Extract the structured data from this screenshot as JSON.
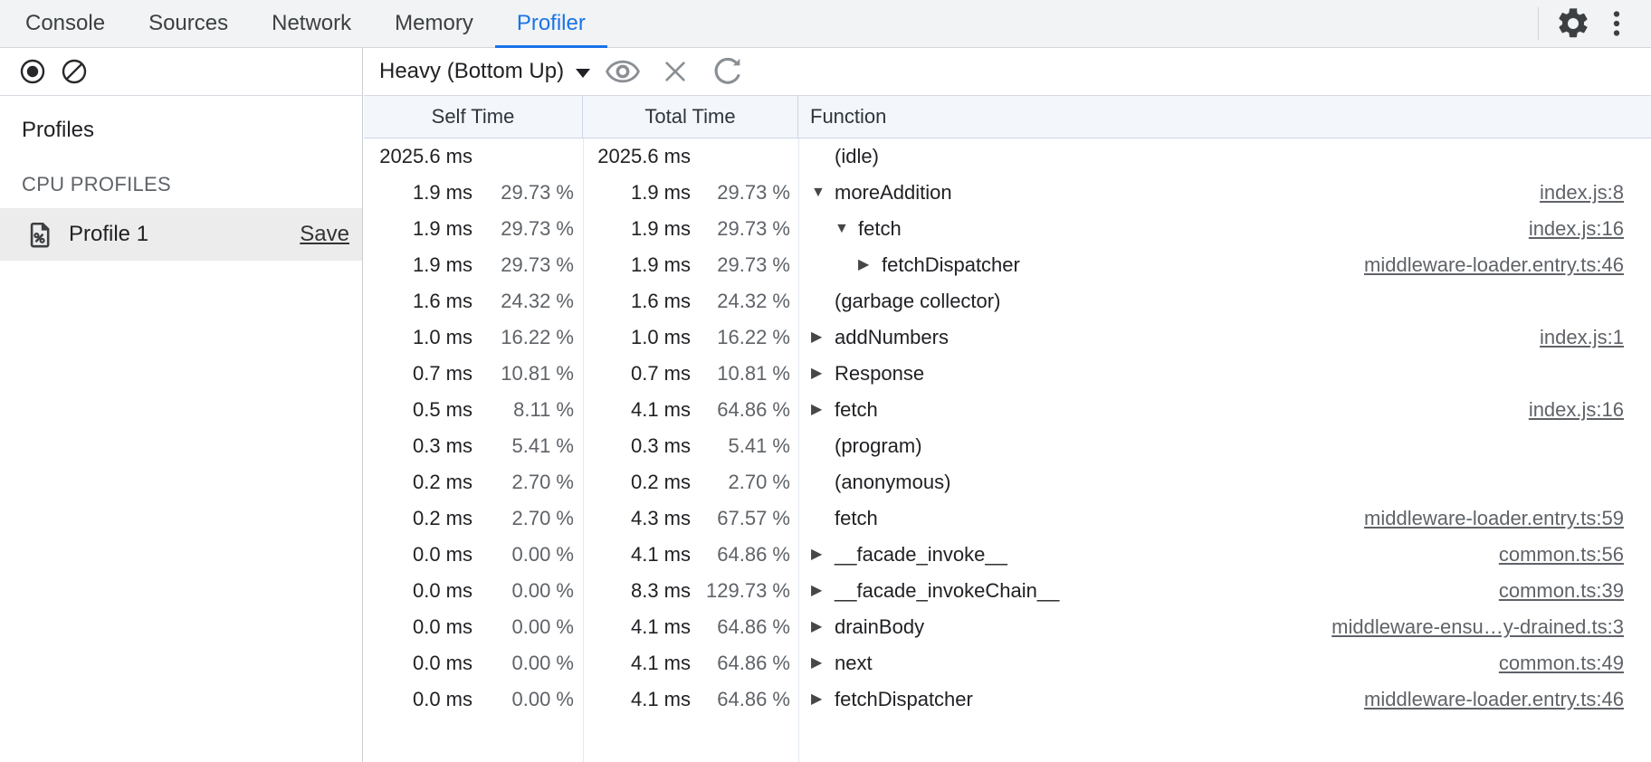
{
  "window": {
    "tabs": [
      "Console",
      "Sources",
      "Network",
      "Memory",
      "Profiler"
    ],
    "active_tab": "Profiler"
  },
  "toolbar": {
    "view_selector_label": "Heavy (Bottom Up)"
  },
  "sidebar": {
    "heading": "Profiles",
    "section": "CPU PROFILES",
    "profile_name": "Profile 1",
    "save_label": "Save"
  },
  "table": {
    "columns": [
      "Self Time",
      "Total Time",
      "Function"
    ],
    "rows": [
      {
        "self_ms": "2025.6 ms",
        "self_pct": "",
        "total_ms": "2025.6 ms",
        "total_pct": "",
        "fn": "(idle)",
        "depth": 0,
        "arrow": "",
        "link": ""
      },
      {
        "self_ms": "1.9 ms",
        "self_pct": "29.73 %",
        "total_ms": "1.9 ms",
        "total_pct": "29.73 %",
        "fn": "moreAddition",
        "depth": 0,
        "arrow": "down",
        "link": "index.js:8"
      },
      {
        "self_ms": "1.9 ms",
        "self_pct": "29.73 %",
        "total_ms": "1.9 ms",
        "total_pct": "29.73 %",
        "fn": "fetch",
        "depth": 1,
        "arrow": "down",
        "link": "index.js:16"
      },
      {
        "self_ms": "1.9 ms",
        "self_pct": "29.73 %",
        "total_ms": "1.9 ms",
        "total_pct": "29.73 %",
        "fn": "fetchDispatcher",
        "depth": 2,
        "arrow": "right",
        "link": "middleware-loader.entry.ts:46"
      },
      {
        "self_ms": "1.6 ms",
        "self_pct": "24.32 %",
        "total_ms": "1.6 ms",
        "total_pct": "24.32 %",
        "fn": "(garbage collector)",
        "depth": 0,
        "arrow": "",
        "link": ""
      },
      {
        "self_ms": "1.0 ms",
        "self_pct": "16.22 %",
        "total_ms": "1.0 ms",
        "total_pct": "16.22 %",
        "fn": "addNumbers",
        "depth": 0,
        "arrow": "right",
        "link": "index.js:1"
      },
      {
        "self_ms": "0.7 ms",
        "self_pct": "10.81 %",
        "total_ms": "0.7 ms",
        "total_pct": "10.81 %",
        "fn": "Response",
        "depth": 0,
        "arrow": "right",
        "link": ""
      },
      {
        "self_ms": "0.5 ms",
        "self_pct": "8.11 %",
        "total_ms": "4.1 ms",
        "total_pct": "64.86 %",
        "fn": "fetch",
        "depth": 0,
        "arrow": "right",
        "link": "index.js:16"
      },
      {
        "self_ms": "0.3 ms",
        "self_pct": "5.41 %",
        "total_ms": "0.3 ms",
        "total_pct": "5.41 %",
        "fn": "(program)",
        "depth": 0,
        "arrow": "",
        "link": ""
      },
      {
        "self_ms": "0.2 ms",
        "self_pct": "2.70 %",
        "total_ms": "0.2 ms",
        "total_pct": "2.70 %",
        "fn": "(anonymous)",
        "depth": 0,
        "arrow": "",
        "link": ""
      },
      {
        "self_ms": "0.2 ms",
        "self_pct": "2.70 %",
        "total_ms": "4.3 ms",
        "total_pct": "67.57 %",
        "fn": "fetch",
        "depth": 0,
        "arrow": "",
        "link": "middleware-loader.entry.ts:59"
      },
      {
        "self_ms": "0.0 ms",
        "self_pct": "0.00 %",
        "total_ms": "4.1 ms",
        "total_pct": "64.86 %",
        "fn": "__facade_invoke__",
        "depth": 0,
        "arrow": "right",
        "link": "common.ts:56"
      },
      {
        "self_ms": "0.0 ms",
        "self_pct": "0.00 %",
        "total_ms": "8.3 ms",
        "total_pct": "129.73 %",
        "fn": "__facade_invokeChain__",
        "depth": 0,
        "arrow": "right",
        "link": "common.ts:39"
      },
      {
        "self_ms": "0.0 ms",
        "self_pct": "0.00 %",
        "total_ms": "4.1 ms",
        "total_pct": "64.86 %",
        "fn": "drainBody",
        "depth": 0,
        "arrow": "right",
        "link": "middleware-ensu…y-drained.ts:3"
      },
      {
        "self_ms": "0.0 ms",
        "self_pct": "0.00 %",
        "total_ms": "4.1 ms",
        "total_pct": "64.86 %",
        "fn": "next",
        "depth": 0,
        "arrow": "right",
        "link": "common.ts:49"
      },
      {
        "self_ms": "0.0 ms",
        "self_pct": "0.00 %",
        "total_ms": "4.1 ms",
        "total_pct": "64.86 %",
        "fn": "fetchDispatcher",
        "depth": 0,
        "arrow": "right",
        "link": "middleware-loader.entry.ts:46"
      }
    ]
  },
  "icons": {
    "top_right": [
      "gear-icon",
      "more-menu-icon"
    ],
    "sidebar_toolbar": [
      "record-icon",
      "clear-icon"
    ],
    "view_toolbar": [
      "eye-icon",
      "close-icon",
      "refresh-icon"
    ],
    "profile_item": "profile-document-icon",
    "dropdown_caret": "caret-down-icon",
    "expanded_marker": "▼",
    "collapsed_marker": "▶"
  },
  "colors": {
    "accent": "#1a73e8",
    "text": "#202124",
    "muted": "#5f6368",
    "tabbar_bg": "#f1f3f4",
    "grid_header_bg": "#f3f6fb",
    "grid_line": "#e3e9f2",
    "selected_profile_bg": "#ececec"
  }
}
